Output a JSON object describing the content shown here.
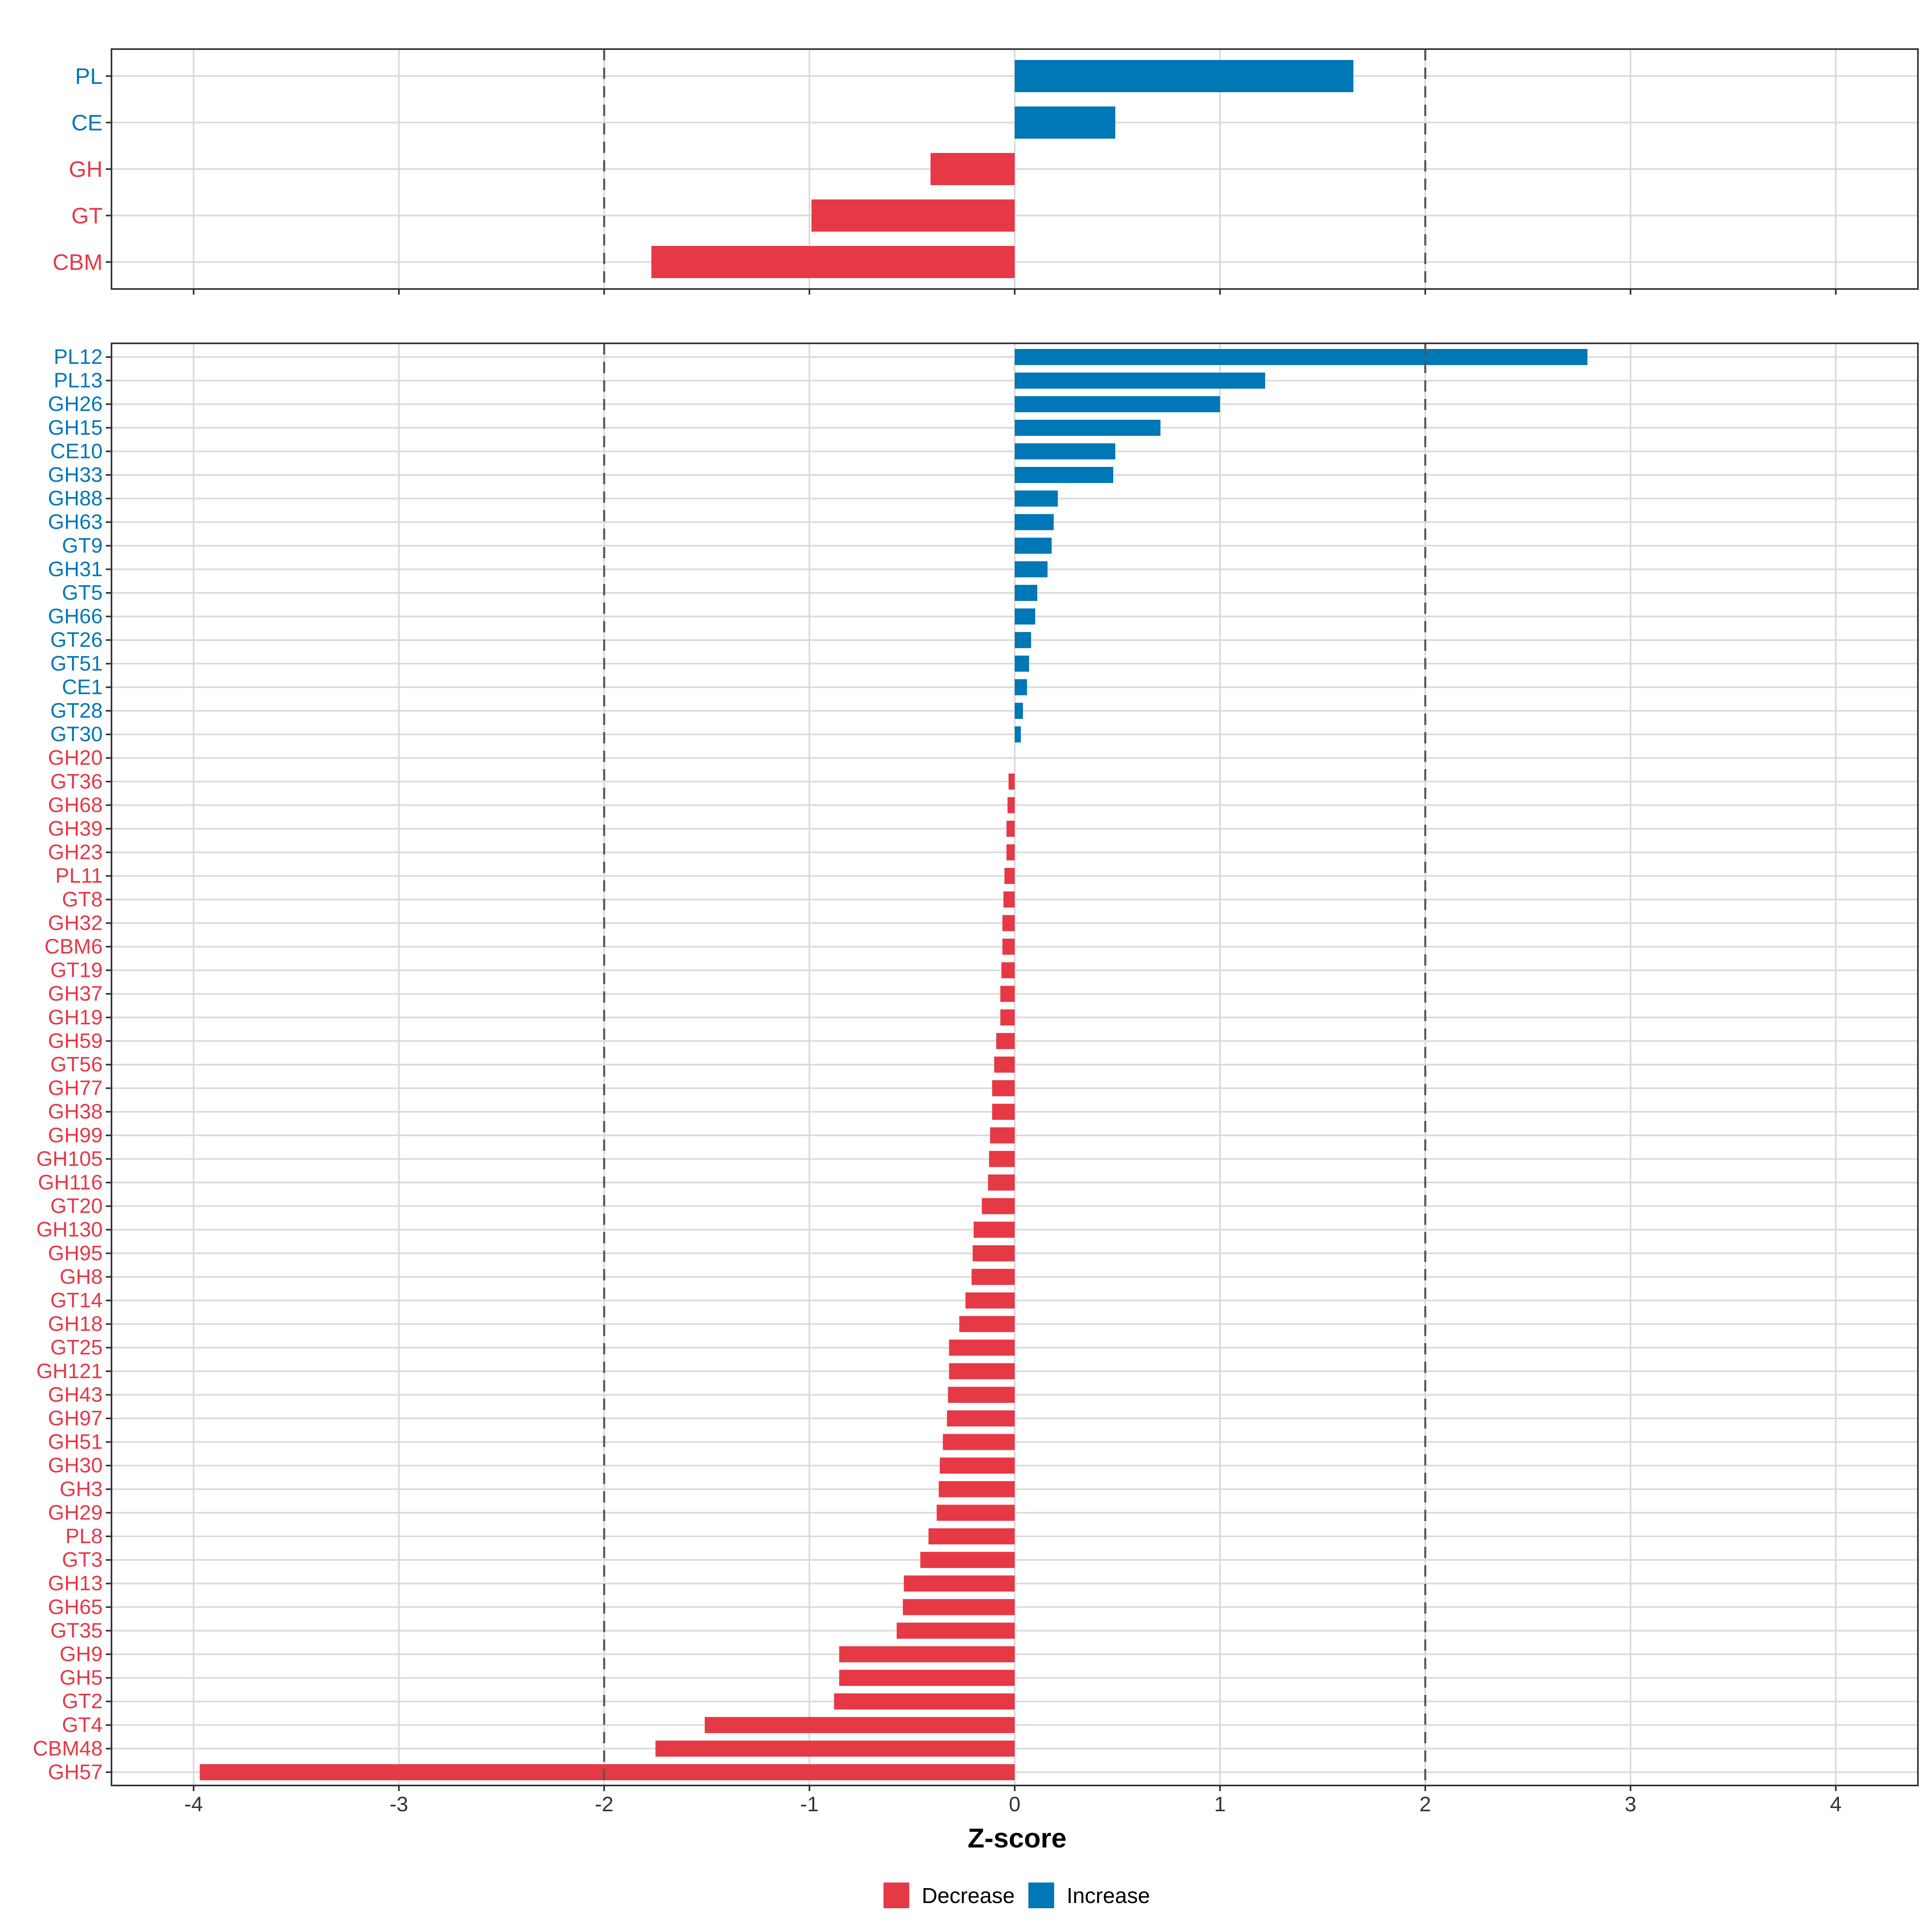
{
  "colors": {
    "decrease": "#E63946",
    "increase": "#0077B6",
    "grid": "#DADADA",
    "border": "#333333",
    "tick": "#333333",
    "axis_text": "#333333"
  },
  "chart_data": [
    {
      "type": "bar",
      "orientation": "horizontal",
      "panel": "class",
      "categories": [
        "PL",
        "CE",
        "GH",
        "GT",
        "CBM"
      ],
      "values": [
        1.65,
        0.49,
        -0.41,
        -0.99,
        -1.77
      ],
      "xlim": [
        -4.4,
        4.4
      ],
      "reference_lines": [
        -2,
        2
      ],
      "grid": true
    },
    {
      "type": "bar",
      "orientation": "horizontal",
      "panel": "family",
      "categories": [
        "PL12",
        "PL13",
        "GH26",
        "GH15",
        "CE10",
        "GH33",
        "GH88",
        "GH63",
        "GT9",
        "GH31",
        "GT5",
        "GH66",
        "GT26",
        "GT51",
        "CE1",
        "GT28",
        "GT30",
        "GH20",
        "GT36",
        "GH68",
        "GH39",
        "GH23",
        "PL11",
        "GT8",
        "GH32",
        "CBM6",
        "GT19",
        "GH37",
        "GH19",
        "GH59",
        "GT56",
        "GH77",
        "GH38",
        "GH99",
        "GH105",
        "GH116",
        "GT20",
        "GH130",
        "GH95",
        "GH8",
        "GT14",
        "GH18",
        "GT25",
        "GH121",
        "GH43",
        "GH97",
        "GH51",
        "GH30",
        "GH3",
        "GH29",
        "PL8",
        "GT3",
        "GH13",
        "GH65",
        "GT35",
        "GH9",
        "GH5",
        "GT2",
        "GT4",
        "CBM48",
        "GH57"
      ],
      "values": [
        2.79,
        1.22,
        1.0,
        0.71,
        0.49,
        0.48,
        0.21,
        0.19,
        0.18,
        0.16,
        0.11,
        0.1,
        0.08,
        0.07,
        0.06,
        0.04,
        0.03,
        0.0,
        -0.03,
        -0.035,
        -0.04,
        -0.04,
        -0.05,
        -0.055,
        -0.06,
        -0.06,
        -0.065,
        -0.07,
        -0.07,
        -0.09,
        -0.1,
        -0.11,
        -0.11,
        -0.12,
        -0.125,
        -0.13,
        -0.16,
        -0.2,
        -0.205,
        -0.21,
        -0.24,
        -0.27,
        -0.32,
        -0.32,
        -0.325,
        -0.33,
        -0.35,
        -0.365,
        -0.37,
        -0.38,
        -0.42,
        -0.46,
        -0.54,
        -0.545,
        -0.575,
        -0.855,
        -0.855,
        -0.88,
        -1.51,
        -1.75,
        -3.97
      ],
      "xlim": [
        -4.4,
        4.4
      ],
      "xticks": [
        -4,
        -3,
        -2,
        -1,
        0,
        1,
        2,
        3,
        4
      ],
      "xtick_labels": [
        "-4",
        "-3",
        "-2",
        "-1",
        "0",
        "1",
        "2",
        "3",
        "4"
      ],
      "xlabel": "Z-score",
      "reference_lines": [
        -2,
        2
      ],
      "grid": true
    }
  ],
  "legend": {
    "position": "bottom",
    "items": [
      {
        "label": "Decrease",
        "color_key": "decrease"
      },
      {
        "label": "Increase",
        "color_key": "increase"
      }
    ]
  }
}
